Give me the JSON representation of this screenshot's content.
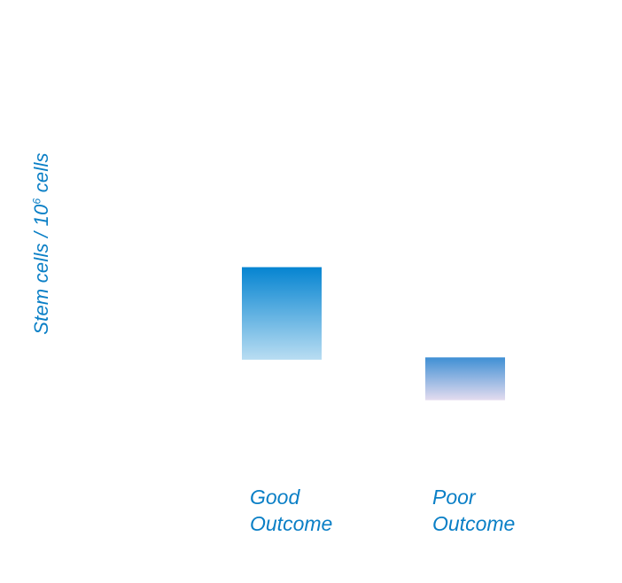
{
  "chart_data": {
    "type": "bar",
    "title": "",
    "xlabel": "",
    "ylabel": {
      "prefix": "Stem cells / 10",
      "superscript": "6",
      "suffix": " cells"
    },
    "categories": [
      {
        "line1": "Good",
        "line2": "Outcome"
      },
      {
        "line1": "Poor",
        "line2": "Outcome"
      }
    ],
    "bars": [
      {
        "low": 0.35,
        "high": 1.15
      },
      {
        "low": 0.0,
        "high": 0.37
      }
    ],
    "ylim": [
      -0.6,
      3.0
    ],
    "grid": false,
    "legend": "none",
    "colors": {
      "text": "#0a7fc6",
      "bar0_top": "#0584d1",
      "bar0_bottom": "#b9ddf2",
      "bar1_top": "#3f8fd4",
      "bar1_bottom": "#e4dcef"
    }
  }
}
